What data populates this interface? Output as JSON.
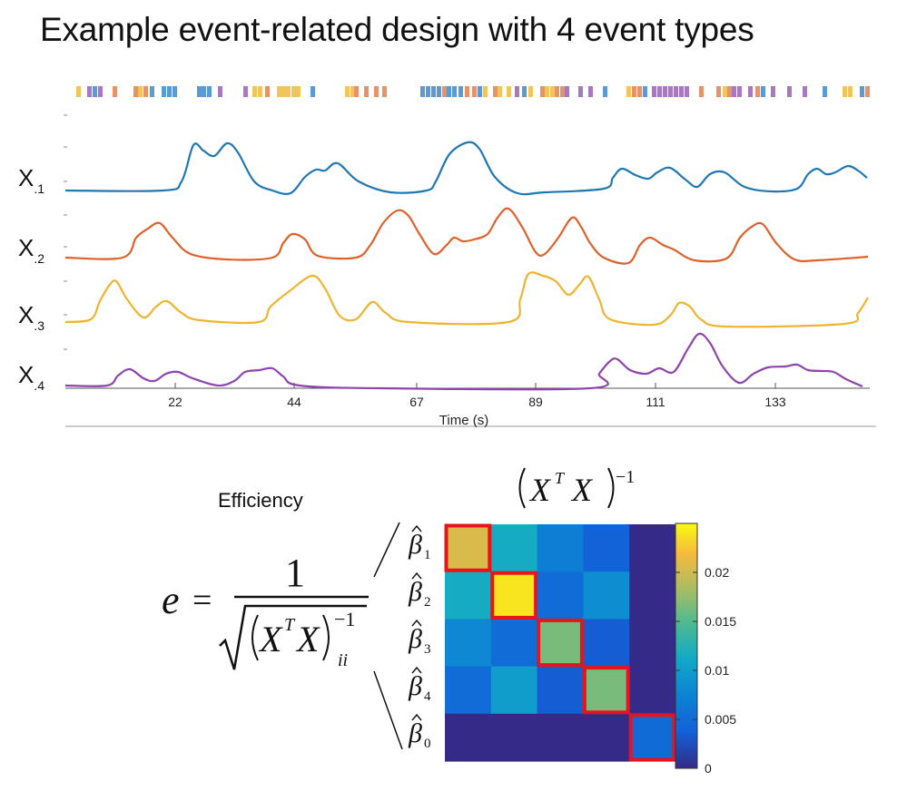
{
  "title": "Example event-related design with 4 event types",
  "colors": {
    "x1": "#1f77b4",
    "x2": "#e0602a",
    "x3": "#efb52e",
    "x4": "#8e44ad",
    "highlight": "#e8141b",
    "axis": "#444444"
  },
  "regressors": {
    "labels": [
      {
        "main": "X",
        "sub": ".1"
      },
      {
        "main": "X",
        "sub": ".2"
      },
      {
        "main": "X",
        "sub": ".3"
      },
      {
        "main": "X",
        "sub": ".4"
      }
    ],
    "xlabel": "Time (s)",
    "xticks": [
      "22",
      "44",
      "67",
      "89",
      "111",
      "133"
    ]
  },
  "events": {
    "type_colors": [
      "#5b9bd5",
      "#e8926a",
      "#f2c55c",
      "#a77ac0"
    ]
  },
  "efficiency": {
    "label": "Efficiency",
    "lhs": "e",
    "equals": "=",
    "numerator": "1",
    "matrix_symbol": "X",
    "transpose": "T",
    "inverse": "−1",
    "subscript": "ii"
  },
  "matrix": {
    "header_symbol": "X",
    "header_transpose": "T",
    "header_inverse": "−1",
    "betas": [
      {
        "main": "β",
        "sub": "1"
      },
      {
        "main": "β",
        "sub": "2"
      },
      {
        "main": "β",
        "sub": "3"
      },
      {
        "main": "β",
        "sub": "4"
      },
      {
        "main": "β",
        "sub": "0"
      }
    ],
    "values": [
      [
        0.0205,
        0.0115,
        0.007,
        0.004,
        0.0
      ],
      [
        0.0115,
        0.024,
        0.005,
        0.0085,
        0.0
      ],
      [
        0.008,
        0.005,
        0.0165,
        0.0035,
        0.0
      ],
      [
        0.005,
        0.01,
        0.0035,
        0.0165,
        0.0
      ],
      [
        0.0,
        0.0,
        0.0,
        0.0,
        0.0048
      ]
    ],
    "highlight_diagonal": true,
    "colorbar_ticks": [
      "0",
      "0.005",
      "0.01",
      "0.015",
      "0.02"
    ],
    "colorbar_range": [
      0,
      0.025
    ]
  }
}
